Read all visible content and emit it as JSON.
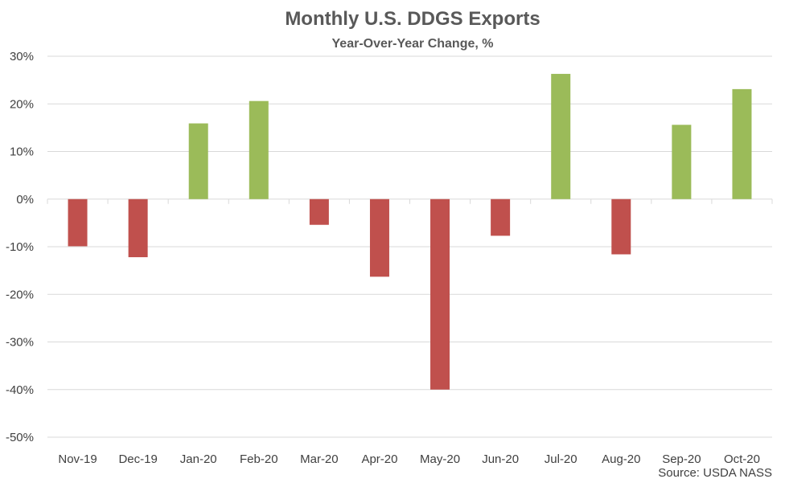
{
  "chart_data": {
    "type": "bar",
    "title": "Monthly U.S. DDGS Exports",
    "subtitle": "Year-Over-Year Change, %",
    "source": "Source: USDA NASS",
    "xlabel": "",
    "ylabel": "",
    "ylim": [
      -50,
      30
    ],
    "yticks": [
      30,
      20,
      10,
      0,
      -10,
      -20,
      -30,
      -40,
      -50
    ],
    "ytick_labels": [
      "30%",
      "20%",
      "10%",
      "0%",
      "-10%",
      "-20%",
      "-30%",
      "-40%",
      "-50%"
    ],
    "grid": true,
    "legend": "none",
    "categories": [
      "Nov-19",
      "Dec-19",
      "Jan-20",
      "Feb-20",
      "Mar-20",
      "Apr-20",
      "May-20",
      "Jun-20",
      "Jul-20",
      "Aug-20",
      "Sep-20",
      "Oct-20"
    ],
    "values": [
      -9.9,
      -12.2,
      15.9,
      20.6,
      -5.4,
      -16.3,
      -40.0,
      -7.7,
      26.3,
      -11.6,
      15.6,
      23.1
    ],
    "colors": {
      "positive": "#9BBB59",
      "negative": "#C0504D",
      "grid": "#D9D9D9",
      "text": "#404040",
      "title": "#595959"
    }
  }
}
